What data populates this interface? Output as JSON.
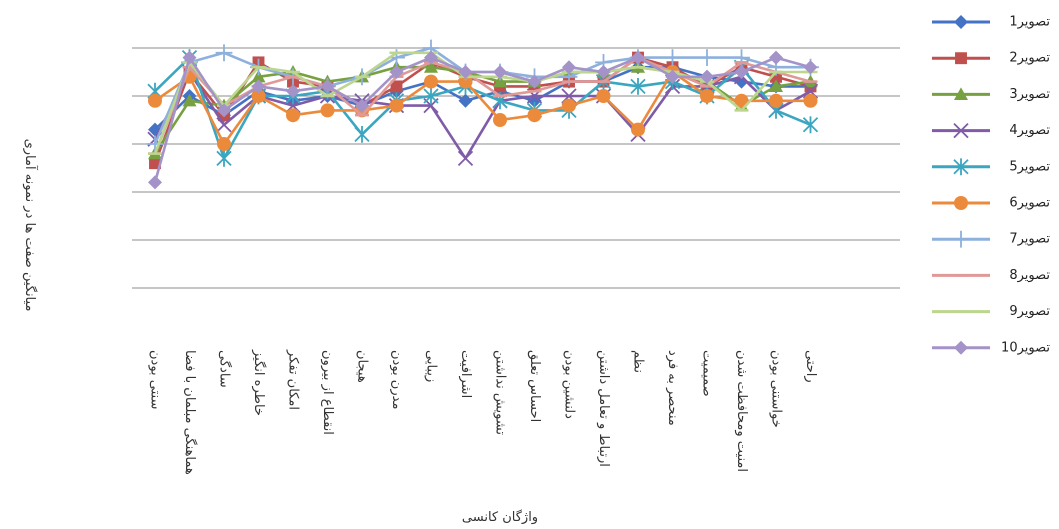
{
  "chart_data": {
    "type": "line",
    "title": "",
    "xlabel": "واژگان کانسی",
    "ylabel": "میانگین صفت ها در نمونه آماری",
    "ylim": [
      0,
      5
    ],
    "grid": true,
    "legend_position": "right",
    "categories": [
      "سنتی بودن",
      "هماهنگی مبلمان با فضا",
      "سادگی",
      "خاطره انگیز",
      "امکان تفکر",
      "انقطاع از بیرون",
      "هیجان",
      "مدرن بودن",
      "زیبایی",
      "اشرافیت",
      "تشویش نداشتن",
      "احساس تعلق",
      "دلنشین بودن",
      "ارتباط و تعامل داشتن",
      "نظم",
      "منحصر به فرد",
      "صمیمیت",
      "امنیت ومحافظت شدن",
      "خواستنی بودن",
      "راحتی"
    ],
    "series": [
      {
        "name": "1تصویر",
        "color": "#4472c4",
        "marker": "diamond",
        "values": [
          3.3,
          4.0,
          3.6,
          4.1,
          3.9,
          4.0,
          3.8,
          4.1,
          4.3,
          3.9,
          4.1,
          3.9,
          4.3,
          4.3,
          4.6,
          4.6,
          4.4,
          4.3,
          4.2,
          4.2
        ]
      },
      {
        "name": "2تصویر",
        "color": "#c0504d",
        "marker": "square",
        "values": [
          2.6,
          4.5,
          3.6,
          4.7,
          4.3,
          4.2,
          3.8,
          4.2,
          4.7,
          4.4,
          4.2,
          4.2,
          4.3,
          4.3,
          4.8,
          4.6,
          4.2,
          4.6,
          4.4,
          4.2
        ]
      },
      {
        "name": "3تصویر",
        "color": "#77a040",
        "marker": "triangle",
        "values": [
          2.8,
          3.9,
          3.8,
          4.4,
          4.5,
          4.3,
          4.4,
          4.6,
          4.6,
          4.5,
          4.3,
          4.3,
          4.5,
          4.5,
          4.6,
          4.5,
          4.3,
          3.8,
          4.2,
          4.3
        ]
      },
      {
        "name": "4تصویر",
        "color": "#7f5ba8",
        "marker": "x",
        "values": [
          3.1,
          4.5,
          3.4,
          4.0,
          3.8,
          4.0,
          3.9,
          3.8,
          3.8,
          2.7,
          3.9,
          4.0,
          4.0,
          4.0,
          3.2,
          4.2,
          4.2,
          4.4,
          3.7,
          4.1
        ]
      },
      {
        "name": "5تصویر",
        "color": "#3aa6c0",
        "marker": "asterisk",
        "values": [
          4.1,
          4.8,
          2.7,
          4.0,
          4.0,
          4.1,
          3.2,
          3.9,
          4.0,
          4.2,
          3.9,
          3.7,
          3.7,
          4.3,
          4.2,
          4.3,
          4.0,
          4.6,
          3.7,
          3.4
        ]
      },
      {
        "name": "6تصویر",
        "color": "#ec8a3c",
        "marker": "circle",
        "values": [
          3.9,
          4.4,
          3.0,
          4.0,
          3.6,
          3.7,
          3.7,
          3.8,
          4.3,
          4.3,
          3.5,
          3.6,
          3.8,
          4.0,
          3.3,
          4.5,
          4.0,
          3.9,
          3.9,
          3.9
        ]
      },
      {
        "name": "7تصویر",
        "color": "#8eb0dd",
        "marker": "plus",
        "values": [
          3.0,
          4.7,
          4.9,
          4.6,
          4.4,
          4.2,
          4.4,
          4.8,
          5.0,
          4.5,
          4.5,
          4.4,
          4.4,
          4.7,
          4.8,
          4.8,
          4.8,
          4.8,
          4.6,
          4.6
        ]
      },
      {
        "name": "8تصویر",
        "color": "#df9a98",
        "marker": "dash",
        "values": [
          2.8,
          4.6,
          3.8,
          4.2,
          4.4,
          4.2,
          3.6,
          4.4,
          4.7,
          4.5,
          4.0,
          4.1,
          4.3,
          4.3,
          4.8,
          4.5,
          4.2,
          4.7,
          4.5,
          4.3
        ]
      },
      {
        "name": "9تصویر",
        "color": "#bcd68e",
        "marker": "dash",
        "values": [
          2.8,
          4.7,
          3.8,
          4.6,
          4.5,
          4.0,
          4.4,
          4.9,
          4.9,
          4.4,
          4.4,
          4.3,
          4.5,
          4.5,
          4.6,
          4.5,
          4.3,
          3.7,
          4.5,
          4.5
        ]
      },
      {
        "name": "10تصویر",
        "color": "#a493c8",
        "marker": "diamond",
        "values": [
          2.2,
          4.8,
          3.7,
          4.2,
          4.1,
          4.2,
          3.8,
          4.5,
          4.8,
          4.5,
          4.5,
          4.3,
          4.6,
          4.5,
          4.8,
          4.4,
          4.4,
          4.5,
          4.8,
          4.6
        ]
      }
    ]
  }
}
